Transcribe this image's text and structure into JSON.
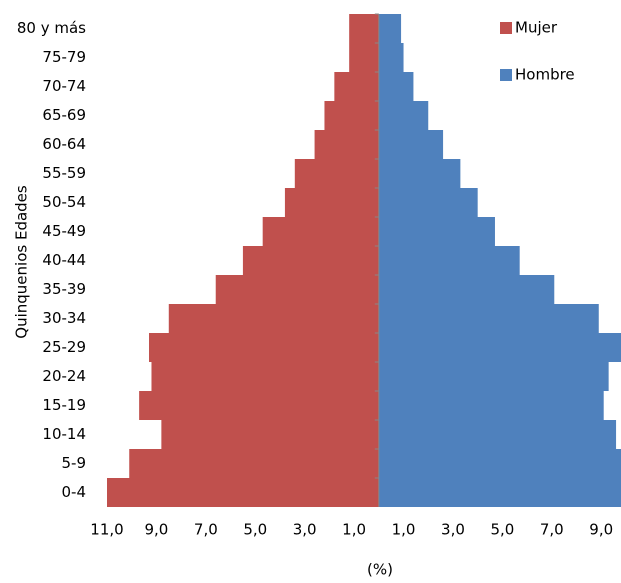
{
  "chart_data": {
    "type": "pyramid",
    "x_label": "(%)",
    "y_label": "Quinquenios Edades",
    "categories": [
      "0-4",
      "5-9",
      "10-14",
      "15-19",
      "20-24",
      "25-29",
      "30-34",
      "35-39",
      "40-44",
      "45-49",
      "50-54",
      "55-59",
      "60-64",
      "65-69",
      "70-74",
      "75-79",
      "80 y más"
    ],
    "series": [
      {
        "name": "Mujer",
        "color": "#c0504d",
        "values": [
          -11.0,
          -10.1,
          -8.8,
          -9.7,
          -9.2,
          -9.3,
          -8.5,
          -6.6,
          -5.5,
          -4.7,
          -3.8,
          -3.4,
          -2.6,
          -2.2,
          -1.8,
          -1.2,
          -1.2
        ]
      },
      {
        "name": "Hombre",
        "color": "#4f81bd",
        "values": [
          9.8,
          9.8,
          9.6,
          9.1,
          9.3,
          9.8,
          8.9,
          7.1,
          5.7,
          4.7,
          4.0,
          3.3,
          2.6,
          2.0,
          1.4,
          1.0,
          0.9
        ]
      }
    ],
    "xlim": [
      -11,
      9.8
    ],
    "xticks": [
      {
        "value": -11,
        "label": "11,0"
      },
      {
        "value": -9,
        "label": "9,0"
      },
      {
        "value": -7,
        "label": "7,0"
      },
      {
        "value": -5,
        "label": "5,0"
      },
      {
        "value": -3,
        "label": "3,0"
      },
      {
        "value": -1,
        "label": "1,0"
      },
      {
        "value": 1,
        "label": "1,0"
      },
      {
        "value": 3,
        "label": "3,0"
      },
      {
        "value": 5,
        "label": "5,0"
      },
      {
        "value": 7,
        "label": "7,0"
      },
      {
        "value": 9,
        "label": "9,0"
      }
    ],
    "legend": "top-right"
  }
}
